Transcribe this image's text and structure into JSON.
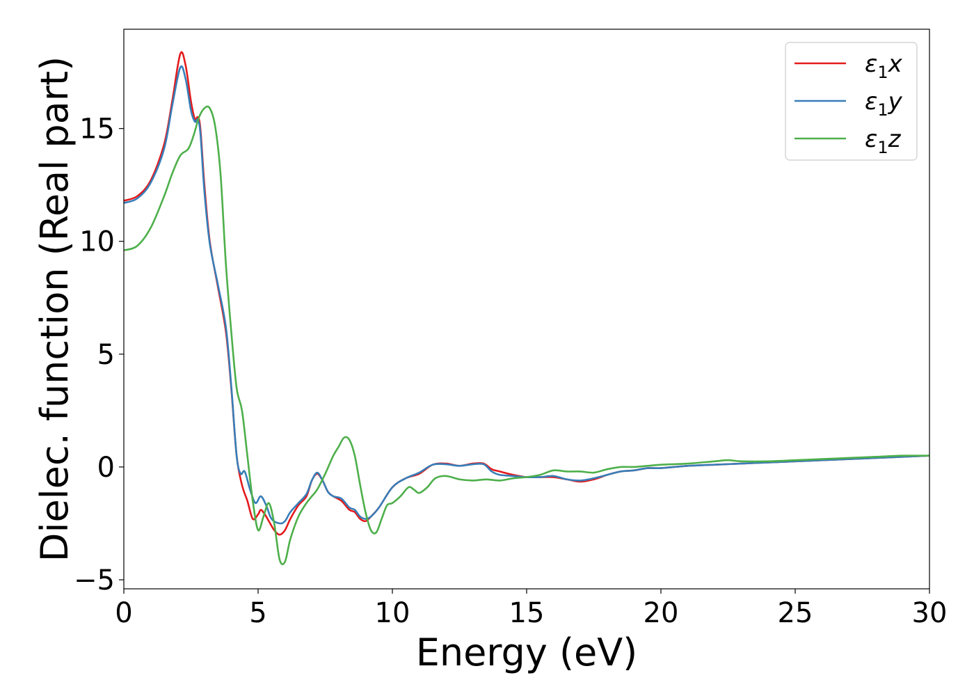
{
  "chart_data": {
    "type": "line",
    "xlabel": "Energy (eV)",
    "ylabel": "Dielec. function (Real part)",
    "xlim": [
      0,
      30
    ],
    "ylim": [
      -5.4,
      19.4
    ],
    "xticks": [
      0,
      5,
      10,
      15,
      20,
      25,
      30
    ],
    "xtick_labels": [
      "0",
      "5",
      "10",
      "15",
      "20",
      "25",
      "30"
    ],
    "yticks": [
      -5,
      0,
      5,
      10,
      15
    ],
    "ytick_labels": [
      "−5",
      "0",
      "5",
      "10",
      "15"
    ],
    "grid": false,
    "legend_position": "top-right",
    "series": [
      {
        "name": "ε₁x",
        "legend": {
          "base": "ε",
          "sub": "1",
          "suffix": "x"
        },
        "color": "#e41a1c",
        "points": [
          [
            0,
            11.8
          ],
          [
            0.5,
            12.0
          ],
          [
            1.0,
            12.7
          ],
          [
            1.5,
            14.3
          ],
          [
            1.8,
            16.2
          ],
          [
            2.1,
            18.3
          ],
          [
            2.3,
            17.8
          ],
          [
            2.5,
            16.2
          ],
          [
            2.65,
            15.4
          ],
          [
            2.75,
            15.5
          ],
          [
            2.85,
            15.0
          ],
          [
            3.0,
            12.5
          ],
          [
            3.2,
            10.0
          ],
          [
            3.5,
            8.0
          ],
          [
            3.8,
            6.0
          ],
          [
            4.0,
            3.5
          ],
          [
            4.2,
            0.5
          ],
          [
            4.4,
            -0.8
          ],
          [
            4.6,
            -1.5
          ],
          [
            4.8,
            -2.3
          ],
          [
            5.0,
            -2.1
          ],
          [
            5.1,
            -1.9
          ],
          [
            5.25,
            -2.1
          ],
          [
            5.4,
            -2.4
          ],
          [
            5.6,
            -2.8
          ],
          [
            5.8,
            -3.0
          ],
          [
            6.0,
            -2.8
          ],
          [
            6.2,
            -2.3
          ],
          [
            6.5,
            -1.7
          ],
          [
            6.8,
            -1.3
          ],
          [
            7.0,
            -0.6
          ],
          [
            7.2,
            -0.3
          ],
          [
            7.4,
            -0.6
          ],
          [
            7.6,
            -1.1
          ],
          [
            7.8,
            -1.3
          ],
          [
            8.1,
            -1.5
          ],
          [
            8.4,
            -1.9
          ],
          [
            8.6,
            -2.0
          ],
          [
            8.8,
            -2.3
          ],
          [
            9.0,
            -2.4
          ],
          [
            9.2,
            -2.2
          ],
          [
            9.5,
            -1.8
          ],
          [
            10.0,
            -0.9
          ],
          [
            10.5,
            -0.5
          ],
          [
            11.0,
            -0.3
          ],
          [
            11.5,
            0.1
          ],
          [
            12.0,
            0.15
          ],
          [
            12.5,
            0.05
          ],
          [
            13.0,
            0.15
          ],
          [
            13.4,
            0.15
          ],
          [
            13.7,
            -0.1
          ],
          [
            14.0,
            -0.2
          ],
          [
            14.5,
            -0.35
          ],
          [
            15.0,
            -0.45
          ],
          [
            15.5,
            -0.45
          ],
          [
            16.0,
            -0.45
          ],
          [
            16.5,
            -0.55
          ],
          [
            17.0,
            -0.65
          ],
          [
            17.5,
            -0.55
          ],
          [
            18.0,
            -0.35
          ],
          [
            18.5,
            -0.2
          ],
          [
            19.0,
            -0.15
          ],
          [
            19.5,
            -0.05
          ],
          [
            20.0,
            -0.05
          ],
          [
            21.0,
            0.05
          ],
          [
            22.0,
            0.1
          ],
          [
            23.0,
            0.15
          ],
          [
            24.0,
            0.2
          ],
          [
            25.0,
            0.25
          ],
          [
            26.0,
            0.3
          ],
          [
            27.0,
            0.35
          ],
          [
            28.0,
            0.4
          ],
          [
            29.0,
            0.45
          ],
          [
            30.0,
            0.5
          ]
        ]
      },
      {
        "name": "ε₁y",
        "legend": {
          "base": "ε",
          "sub": "1",
          "suffix": "y"
        },
        "color": "#377eb8",
        "points": [
          [
            0,
            11.7
          ],
          [
            0.5,
            11.9
          ],
          [
            1.0,
            12.6
          ],
          [
            1.5,
            14.1
          ],
          [
            1.8,
            16.0
          ],
          [
            2.1,
            17.7
          ],
          [
            2.3,
            17.2
          ],
          [
            2.5,
            15.8
          ],
          [
            2.65,
            15.3
          ],
          [
            2.75,
            15.4
          ],
          [
            2.85,
            14.8
          ],
          [
            3.0,
            12.2
          ],
          [
            3.2,
            9.9
          ],
          [
            3.5,
            8.1
          ],
          [
            3.8,
            6.2
          ],
          [
            4.0,
            3.6
          ],
          [
            4.2,
            0.5
          ],
          [
            4.35,
            -0.3
          ],
          [
            4.5,
            -0.2
          ],
          [
            4.7,
            -1.0
          ],
          [
            4.9,
            -1.6
          ],
          [
            5.1,
            -1.3
          ],
          [
            5.3,
            -1.7
          ],
          [
            5.5,
            -2.3
          ],
          [
            5.8,
            -2.5
          ],
          [
            6.0,
            -2.4
          ],
          [
            6.2,
            -2.0
          ],
          [
            6.5,
            -1.6
          ],
          [
            6.8,
            -1.2
          ],
          [
            7.0,
            -0.6
          ],
          [
            7.2,
            -0.25
          ],
          [
            7.4,
            -0.6
          ],
          [
            7.6,
            -1.1
          ],
          [
            7.8,
            -1.3
          ],
          [
            8.1,
            -1.4
          ],
          [
            8.4,
            -1.8
          ],
          [
            8.6,
            -1.9
          ],
          [
            8.8,
            -2.2
          ],
          [
            9.0,
            -2.3
          ],
          [
            9.2,
            -2.2
          ],
          [
            9.5,
            -1.8
          ],
          [
            10.0,
            -0.9
          ],
          [
            10.5,
            -0.5
          ],
          [
            11.0,
            -0.25
          ],
          [
            11.5,
            0.1
          ],
          [
            12.0,
            0.12
          ],
          [
            12.5,
            0.05
          ],
          [
            13.0,
            0.12
          ],
          [
            13.4,
            0.12
          ],
          [
            13.7,
            -0.2
          ],
          [
            14.0,
            -0.35
          ],
          [
            14.5,
            -0.4
          ],
          [
            15.0,
            -0.45
          ],
          [
            15.5,
            -0.45
          ],
          [
            16.0,
            -0.4
          ],
          [
            16.5,
            -0.55
          ],
          [
            17.0,
            -0.6
          ],
          [
            17.5,
            -0.5
          ],
          [
            18.0,
            -0.35
          ],
          [
            18.5,
            -0.2
          ],
          [
            19.0,
            -0.15
          ],
          [
            19.5,
            -0.05
          ],
          [
            20.0,
            -0.05
          ],
          [
            21.0,
            0.05
          ],
          [
            22.0,
            0.1
          ],
          [
            23.0,
            0.15
          ],
          [
            24.0,
            0.2
          ],
          [
            25.0,
            0.25
          ],
          [
            26.0,
            0.3
          ],
          [
            27.0,
            0.35
          ],
          [
            28.0,
            0.4
          ],
          [
            29.0,
            0.45
          ],
          [
            30.0,
            0.5
          ]
        ]
      },
      {
        "name": "ε₁z",
        "legend": {
          "base": "ε",
          "sub": "1",
          "suffix": "z"
        },
        "color": "#4daf4a",
        "points": [
          [
            0,
            9.6
          ],
          [
            0.5,
            9.8
          ],
          [
            1.0,
            10.6
          ],
          [
            1.5,
            12.0
          ],
          [
            1.8,
            13.0
          ],
          [
            2.1,
            13.8
          ],
          [
            2.4,
            14.1
          ],
          [
            2.6,
            14.7
          ],
          [
            2.8,
            15.5
          ],
          [
            3.0,
            15.9
          ],
          [
            3.2,
            15.9
          ],
          [
            3.4,
            15.1
          ],
          [
            3.6,
            13.0
          ],
          [
            3.8,
            9.0
          ],
          [
            4.0,
            6.0
          ],
          [
            4.2,
            3.5
          ],
          [
            4.4,
            2.5
          ],
          [
            4.6,
            0.5
          ],
          [
            4.8,
            -1.5
          ],
          [
            5.0,
            -2.8
          ],
          [
            5.2,
            -2.2
          ],
          [
            5.4,
            -1.6
          ],
          [
            5.6,
            -2.5
          ],
          [
            5.8,
            -4.1
          ],
          [
            6.0,
            -4.2
          ],
          [
            6.2,
            -3.2
          ],
          [
            6.5,
            -2.2
          ],
          [
            6.8,
            -1.6
          ],
          [
            7.0,
            -1.3
          ],
          [
            7.2,
            -1.0
          ],
          [
            7.5,
            -0.3
          ],
          [
            7.8,
            0.5
          ],
          [
            8.0,
            0.9
          ],
          [
            8.2,
            1.3
          ],
          [
            8.4,
            1.2
          ],
          [
            8.6,
            0.5
          ],
          [
            8.8,
            -0.8
          ],
          [
            9.0,
            -2.0
          ],
          [
            9.2,
            -2.8
          ],
          [
            9.4,
            -2.9
          ],
          [
            9.6,
            -2.3
          ],
          [
            9.8,
            -1.7
          ],
          [
            10.0,
            -1.6
          ],
          [
            10.3,
            -1.3
          ],
          [
            10.6,
            -0.9
          ],
          [
            10.8,
            -1.0
          ],
          [
            11.0,
            -1.15
          ],
          [
            11.3,
            -0.9
          ],
          [
            11.6,
            -0.5
          ],
          [
            12.0,
            -0.4
          ],
          [
            12.5,
            -0.55
          ],
          [
            13.0,
            -0.6
          ],
          [
            13.5,
            -0.55
          ],
          [
            14.0,
            -0.6
          ],
          [
            14.5,
            -0.5
          ],
          [
            15.0,
            -0.45
          ],
          [
            15.5,
            -0.35
          ],
          [
            16.0,
            -0.15
          ],
          [
            16.5,
            -0.2
          ],
          [
            17.0,
            -0.2
          ],
          [
            17.5,
            -0.25
          ],
          [
            18.0,
            -0.1
          ],
          [
            18.5,
            0.0
          ],
          [
            19.0,
            0.0
          ],
          [
            19.5,
            0.05
          ],
          [
            20.0,
            0.1
          ],
          [
            21.0,
            0.15
          ],
          [
            22.0,
            0.25
          ],
          [
            22.5,
            0.3
          ],
          [
            23.0,
            0.25
          ],
          [
            24.0,
            0.25
          ],
          [
            25.0,
            0.3
          ],
          [
            26.0,
            0.35
          ],
          [
            27.0,
            0.4
          ],
          [
            28.0,
            0.45
          ],
          [
            29.0,
            0.5
          ],
          [
            30.0,
            0.5
          ]
        ]
      }
    ]
  }
}
